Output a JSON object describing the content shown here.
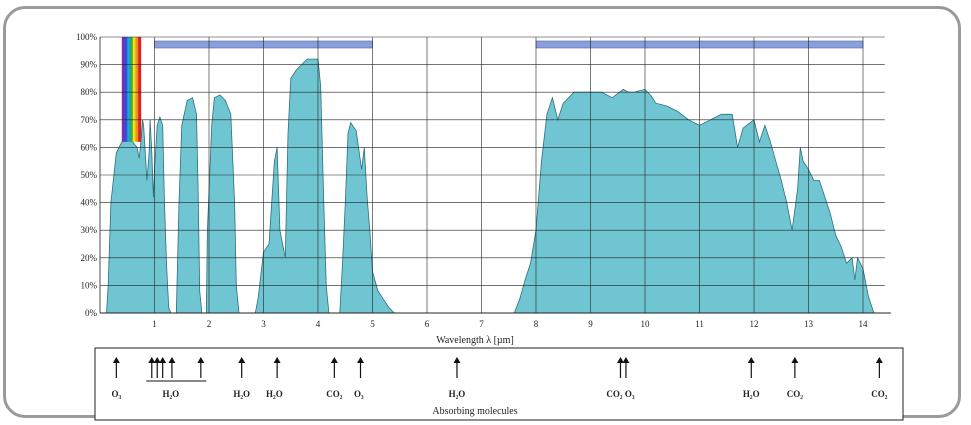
{
  "colors": {
    "fill": "#6fc6d2",
    "stroke": "#2d6f7a",
    "band": "#8aa0dc",
    "grid": "#222222",
    "arrow": "#111111"
  },
  "chart_data": {
    "type": "area",
    "xlabel": "Wavelength  λ [µm]",
    "bottom_label": "Absorbing molecules",
    "xlim": [
      0,
      14.4
    ],
    "ylim": [
      0,
      100
    ],
    "x_ticks": [
      {
        "v": 1,
        "label": "1"
      },
      {
        "v": 2,
        "label": "2"
      },
      {
        "v": 3,
        "label": "3"
      },
      {
        "v": 4,
        "label": "4"
      },
      {
        "v": 5,
        "label": "5"
      },
      {
        "v": 6,
        "label": "6"
      },
      {
        "v": 7,
        "label": "7"
      },
      {
        "v": 8,
        "label": "8"
      },
      {
        "v": 9,
        "label": "9"
      },
      {
        "v": 10,
        "label": "10"
      },
      {
        "v": 11,
        "label": "11"
      },
      {
        "v": 12,
        "label": "12"
      },
      {
        "v": 13,
        "label": "13"
      },
      {
        "v": 14,
        "label": "14"
      }
    ],
    "y_ticks": [
      {
        "v": 0,
        "label": "0%"
      },
      {
        "v": 10,
        "label": "10%"
      },
      {
        "v": 20,
        "label": "20%"
      },
      {
        "v": 30,
        "label": "30%"
      },
      {
        "v": 40,
        "label": "40%"
      },
      {
        "v": 50,
        "label": "50%"
      },
      {
        "v": 60,
        "label": "60%"
      },
      {
        "v": 70,
        "label": "70%"
      },
      {
        "v": 80,
        "label": "80%"
      },
      {
        "v": 90,
        "label": "90%"
      },
      {
        "v": 100,
        "label": "100%"
      }
    ],
    "grid": true,
    "atmospheric_windows": [
      [
        1.0,
        5.0
      ],
      [
        8.0,
        14.0
      ]
    ],
    "visible_spectrum": [
      0.4,
      0.75
    ],
    "series": [
      {
        "points": [
          [
            0.12,
            0
          ],
          [
            0.15,
            10
          ],
          [
            0.2,
            40
          ],
          [
            0.3,
            58
          ],
          [
            0.4,
            62
          ],
          [
            0.5,
            63
          ],
          [
            0.6,
            62
          ],
          [
            0.68,
            60
          ],
          [
            0.72,
            56
          ],
          [
            0.75,
            62
          ],
          [
            0.78,
            70
          ],
          [
            0.8,
            68
          ],
          [
            0.84,
            55
          ],
          [
            0.86,
            48
          ],
          [
            0.9,
            58
          ],
          [
            0.92,
            70
          ],
          [
            0.95,
            58
          ],
          [
            0.98,
            42
          ],
          [
            1.0,
            52
          ],
          [
            1.05,
            68
          ],
          [
            1.1,
            71
          ],
          [
            1.15,
            68
          ],
          [
            1.18,
            42
          ],
          [
            1.22,
            18
          ],
          [
            1.26,
            2
          ],
          [
            1.3,
            0
          ],
          [
            1.4,
            0
          ],
          [
            1.45,
            40
          ],
          [
            1.5,
            68
          ],
          [
            1.6,
            77
          ],
          [
            1.7,
            78
          ],
          [
            1.77,
            72
          ],
          [
            1.8,
            45
          ],
          [
            1.83,
            8
          ],
          [
            1.87,
            0
          ],
          [
            1.95,
            0
          ],
          [
            1.97,
            30
          ],
          [
            2.05,
            68
          ],
          [
            2.1,
            78
          ],
          [
            2.2,
            79
          ],
          [
            2.3,
            77
          ],
          [
            2.4,
            72
          ],
          [
            2.47,
            40
          ],
          [
            2.5,
            10
          ],
          [
            2.55,
            0
          ],
          [
            2.85,
            0
          ],
          [
            2.9,
            5
          ],
          [
            3.0,
            22
          ],
          [
            3.1,
            25
          ],
          [
            3.2,
            55
          ],
          [
            3.25,
            60
          ],
          [
            3.3,
            30
          ],
          [
            3.4,
            20
          ],
          [
            3.45,
            65
          ],
          [
            3.5,
            85
          ],
          [
            3.6,
            88
          ],
          [
            3.7,
            90
          ],
          [
            3.8,
            92
          ],
          [
            4.0,
            92
          ],
          [
            4.05,
            82
          ],
          [
            4.1,
            45
          ],
          [
            4.15,
            10
          ],
          [
            4.2,
            0
          ],
          [
            4.4,
            0
          ],
          [
            4.45,
            18
          ],
          [
            4.5,
            40
          ],
          [
            4.55,
            65
          ],
          [
            4.6,
            69
          ],
          [
            4.7,
            66
          ],
          [
            4.8,
            52
          ],
          [
            4.85,
            60
          ],
          [
            4.9,
            42
          ],
          [
            4.95,
            30
          ],
          [
            5.0,
            15
          ],
          [
            5.1,
            8
          ],
          [
            5.2,
            5
          ],
          [
            5.3,
            2
          ],
          [
            5.4,
            0
          ],
          [
            7.6,
            0
          ],
          [
            7.7,
            5
          ],
          [
            7.8,
            12
          ],
          [
            7.9,
            18
          ],
          [
            8.0,
            30
          ],
          [
            8.1,
            55
          ],
          [
            8.2,
            72
          ],
          [
            8.3,
            78
          ],
          [
            8.4,
            70
          ],
          [
            8.5,
            76
          ],
          [
            8.6,
            78
          ],
          [
            8.7,
            80
          ],
          [
            9.0,
            80
          ],
          [
            9.2,
            80
          ],
          [
            9.4,
            78
          ],
          [
            9.6,
            81
          ],
          [
            9.7,
            80
          ],
          [
            9.8,
            80
          ],
          [
            10.0,
            81
          ],
          [
            10.1,
            79
          ],
          [
            10.2,
            76
          ],
          [
            10.4,
            75
          ],
          [
            10.6,
            73
          ],
          [
            10.8,
            70
          ],
          [
            11.0,
            68
          ],
          [
            11.2,
            70
          ],
          [
            11.4,
            72
          ],
          [
            11.6,
            72
          ],
          [
            11.7,
            60
          ],
          [
            11.8,
            67
          ],
          [
            12.0,
            70
          ],
          [
            12.1,
            62
          ],
          [
            12.2,
            68
          ],
          [
            12.3,
            62
          ],
          [
            12.4,
            55
          ],
          [
            12.5,
            48
          ],
          [
            12.6,
            40
          ],
          [
            12.7,
            30
          ],
          [
            12.8,
            45
          ],
          [
            12.85,
            60
          ],
          [
            12.9,
            55
          ],
          [
            13.0,
            52
          ],
          [
            13.1,
            48
          ],
          [
            13.2,
            48
          ],
          [
            13.3,
            42
          ],
          [
            13.4,
            36
          ],
          [
            13.5,
            28
          ],
          [
            13.6,
            24
          ],
          [
            13.7,
            18
          ],
          [
            13.8,
            20
          ],
          [
            13.85,
            12
          ],
          [
            13.9,
            20
          ],
          [
            14.0,
            16
          ],
          [
            14.1,
            6
          ],
          [
            14.2,
            0
          ]
        ]
      }
    ],
    "molecules": [
      {
        "x": 0.3,
        "label": "O₃"
      },
      {
        "x": 1.3,
        "label": "H₂O"
      },
      {
        "x": 2.6,
        "label": "H₂O"
      },
      {
        "x": 3.2,
        "label": "H₂O"
      },
      {
        "x": 4.3,
        "label": "CO₂"
      },
      {
        "x": 4.75,
        "label": "O₃"
      },
      {
        "x": 6.55,
        "label": "H₂O"
      },
      {
        "x": 9.55,
        "label": "CO₂  O₃"
      },
      {
        "x": 11.95,
        "label": "H₂O"
      },
      {
        "x": 12.75,
        "label": "CO₂"
      },
      {
        "x": 14.3,
        "label": "CO₂"
      }
    ],
    "arrows": [
      0.3,
      0.95,
      1.05,
      1.15,
      1.32,
      1.85,
      2.6,
      3.25,
      4.3,
      4.78,
      6.55,
      9.55,
      9.65,
      11.95,
      12.75,
      14.3
    ]
  }
}
